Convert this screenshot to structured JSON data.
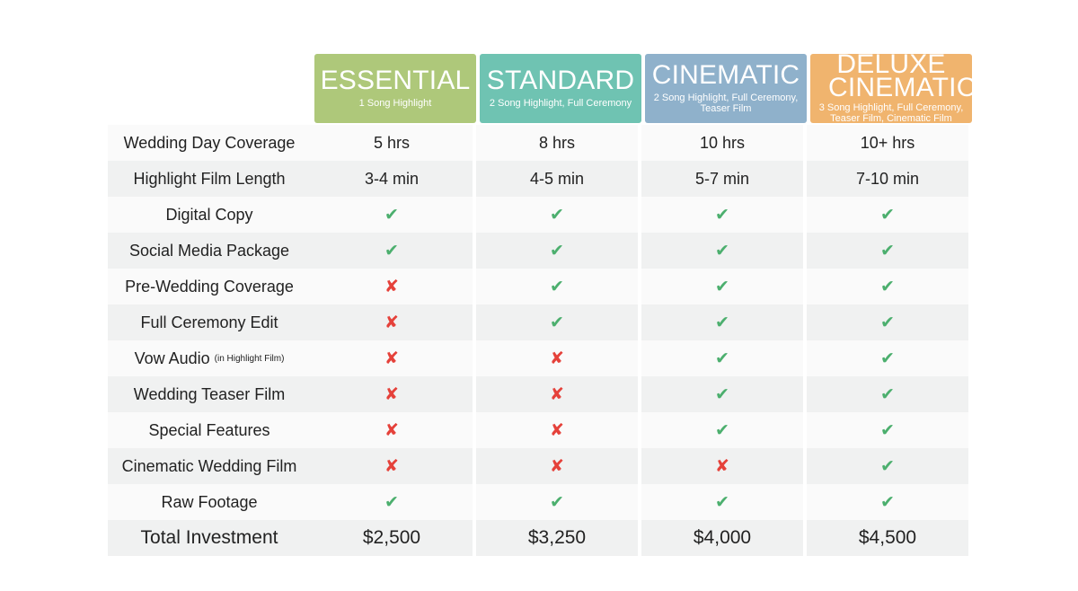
{
  "plans": [
    {
      "name": "ESSENTIAL",
      "desc": "1 Song Highlight",
      "color": "#aec87a"
    },
    {
      "name": "STANDARD",
      "desc": "2 Song Highlight, Full Ceremony",
      "color": "#6fc3b2"
    },
    {
      "name": "CINEMATIC",
      "desc": "2 Song Highlight, Full Ceremony, Teaser Film",
      "color": "#8fb1cb"
    },
    {
      "name": "DELUXE CINEMATIC",
      "desc": "3 Song Highlight, Full Ceremony, Teaser Film, Cinematic Film",
      "color": "#f0b46e"
    }
  ],
  "rows": [
    {
      "feature": "Wedding Day Coverage",
      "note": "",
      "values": [
        "5 hrs",
        "8 hrs",
        "10 hrs",
        "10+ hrs"
      ]
    },
    {
      "feature": "Highlight Film Length",
      "note": "",
      "values": [
        "3-4 min",
        "4-5 min",
        "5-7 min",
        "7-10 min"
      ]
    },
    {
      "feature": "Digital Copy",
      "note": "",
      "values": [
        "check",
        "check",
        "check",
        "check"
      ]
    },
    {
      "feature": "Social Media Package",
      "note": "",
      "values": [
        "check",
        "check",
        "check",
        "check"
      ]
    },
    {
      "feature": "Pre-Wedding Coverage",
      "note": "",
      "values": [
        "cross",
        "check",
        "check",
        "check"
      ]
    },
    {
      "feature": "Full Ceremony Edit",
      "note": "",
      "values": [
        "cross",
        "check",
        "check",
        "check"
      ]
    },
    {
      "feature": "Vow Audio",
      "note": "(in Highlight Film)",
      "values": [
        "cross",
        "cross",
        "check",
        "check"
      ]
    },
    {
      "feature": "Wedding Teaser Film",
      "note": "",
      "values": [
        "cross",
        "cross",
        "check",
        "check"
      ]
    },
    {
      "feature": "Special Features",
      "note": "",
      "values": [
        "cross",
        "cross",
        "check",
        "check"
      ]
    },
    {
      "feature": "Cinematic Wedding Film",
      "note": "",
      "values": [
        "cross",
        "cross",
        "cross",
        "check"
      ]
    },
    {
      "feature": "Raw Footage",
      "note": "",
      "values": [
        "check",
        "check",
        "check",
        "check"
      ]
    }
  ],
  "total": {
    "feature": "Total Investment",
    "values": [
      "$2,500",
      "$3,250",
      "$4,000",
      "$4,500"
    ]
  },
  "icons": {
    "check": "checkmark-icon",
    "cross": "cross-icon"
  },
  "colors": {
    "check": "#4caf6e",
    "cross": "#e5413a"
  }
}
